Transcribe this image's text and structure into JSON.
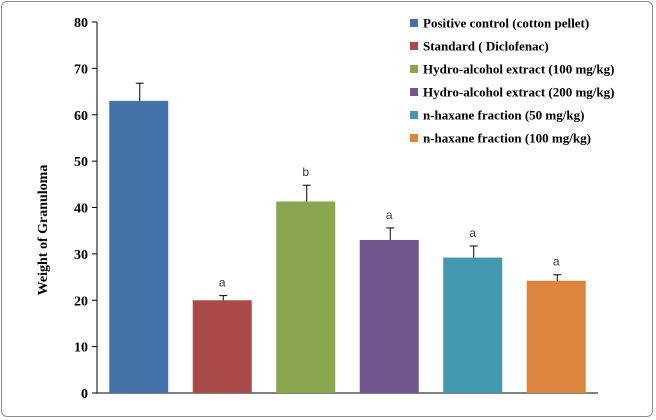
{
  "chart_data": {
    "type": "bar",
    "title": "",
    "xlabel": "",
    "ylabel": "Weight of Granuloma",
    "ylim": [
      0,
      80
    ],
    "yticks": [
      0,
      10,
      20,
      30,
      40,
      50,
      60,
      70,
      80
    ],
    "grid": false,
    "legend_position": "top-right",
    "series": [
      {
        "name": "Positive control (cotton pellet)",
        "value": 63,
        "error": 3.8,
        "significance": "",
        "color": "#4472a8"
      },
      {
        "name": "Standard ( Diclofenac)",
        "value": 20,
        "error": 1.0,
        "significance": "a",
        "color": "#a84a47"
      },
      {
        "name": "Hydro-alcohol extract (100 mg/kg)",
        "value": 41.3,
        "error": 3.5,
        "significance": "b",
        "color": "#89a54e"
      },
      {
        "name": "Hydro-alcohol extract (200 mg/kg)",
        "value": 33,
        "error": 2.6,
        "significance": "a",
        "color": "#725690"
      },
      {
        "name": "n-haxane fraction (50 mg/kg)",
        "value": 29.2,
        "error": 2.5,
        "significance": "a",
        "color": "#4198af"
      },
      {
        "name": "n-haxane fraction  (100 mg/kg)",
        "value": 24.2,
        "error": 1.3,
        "significance": "a",
        "color": "#db843d"
      }
    ]
  }
}
